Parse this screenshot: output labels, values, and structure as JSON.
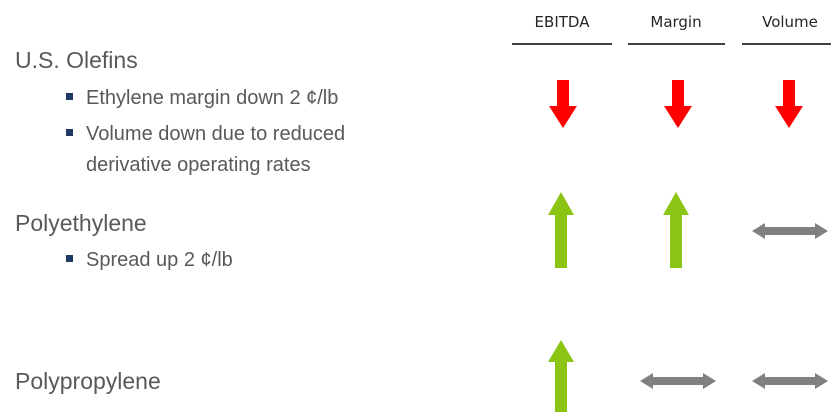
{
  "columns": [
    "EBITDA",
    "Margin",
    "Volume"
  ],
  "sections": [
    {
      "title": "U.S. Olefins",
      "bullets": [
        [
          "Ethylene margin down 2 ¢/lb"
        ],
        [
          "Volume down due to reduced",
          "derivative operating rates"
        ]
      ]
    },
    {
      "title": "Polyethylene",
      "bullets": [
        [
          "Spread up 2 ¢/lb"
        ]
      ]
    },
    {
      "title": "Polypropylene",
      "bullets": []
    }
  ]
}
